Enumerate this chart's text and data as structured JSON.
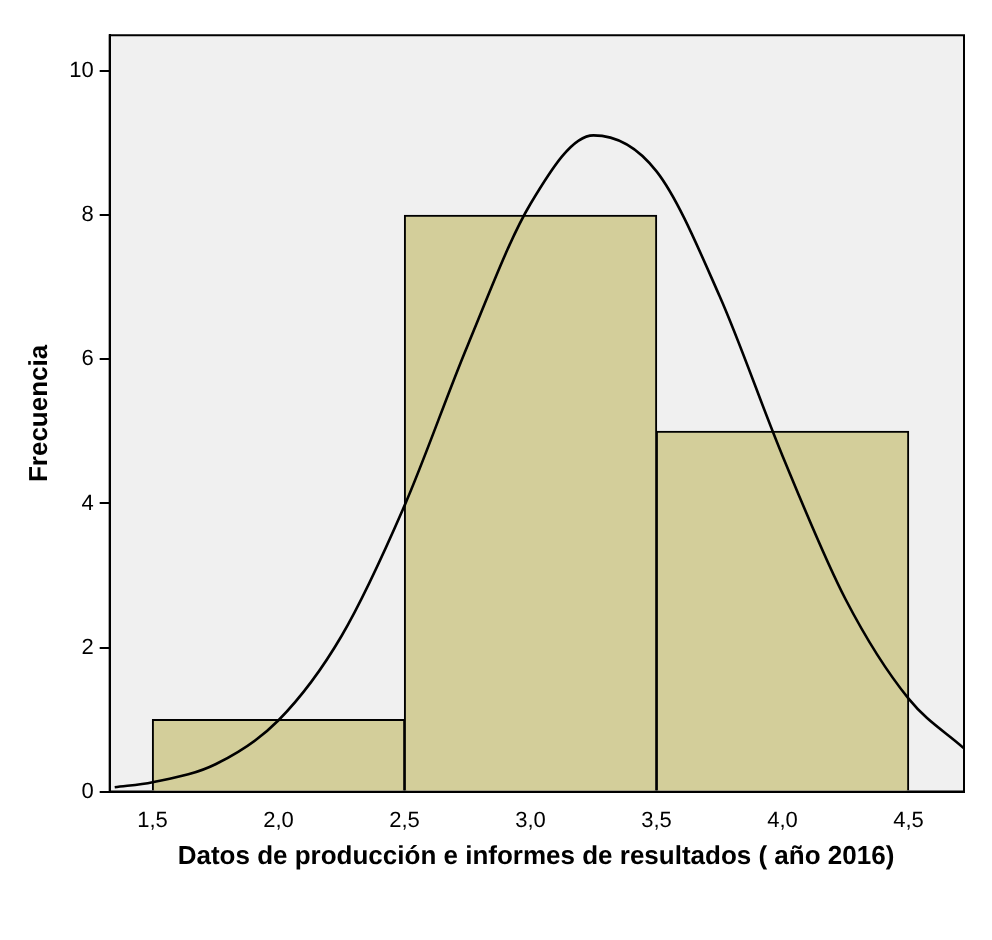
{
  "chart_data": {
    "type": "histogram",
    "xlabel": "Datos de producción e informes de resultados ( año 2016)",
    "ylabel": "Frecuencia",
    "bins": [
      1.5,
      2.5,
      3.5,
      4.5
    ],
    "values": [
      1,
      8,
      5
    ],
    "color": "#d3ce9a",
    "series": [
      {
        "type": "line",
        "color": "#000000",
        "x": [
          1.35,
          1.5,
          1.75,
          2.0,
          2.25,
          2.5,
          2.75,
          3.0,
          3.25,
          3.5,
          3.75,
          4.0,
          4.25,
          4.5,
          4.72
        ],
        "values": [
          0.06,
          0.13,
          0.38,
          0.99,
          2.16,
          3.97,
          6.19,
          8.16,
          9.11,
          8.61,
          6.88,
          4.66,
          2.67,
          1.29,
          0.6
        ]
      }
    ],
    "xlim": [
      1.33,
      4.72
    ],
    "xticks": [
      {
        "value": 1.5,
        "label": "1,5"
      },
      {
        "value": 2,
        "label": "2,0"
      },
      {
        "value": 2.5,
        "label": "2,5"
      },
      {
        "value": 3,
        "label": "3,0"
      },
      {
        "value": 3.5,
        "label": "3,5"
      },
      {
        "value": 4,
        "label": "4,0"
      },
      {
        "value": 4.5,
        "label": "4,5"
      }
    ],
    "ylim": [
      0,
      10.5
    ],
    "yticks": [
      0,
      2,
      4,
      6,
      8,
      10
    ],
    "grid": false,
    "legend": false,
    "marker": "none"
  }
}
